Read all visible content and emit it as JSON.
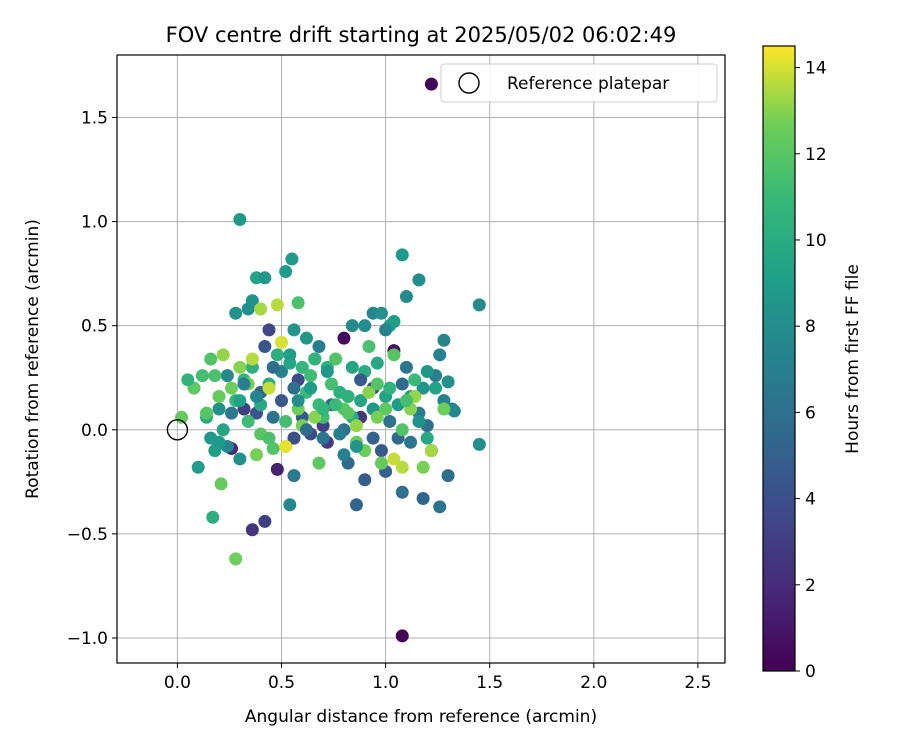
{
  "chart_data": {
    "type": "scatter",
    "title": "FOV centre drift starting at 2025/05/02 06:02:49",
    "xlabel": "Angular distance from reference (arcmin)",
    "ylabel": "Rotation from reference (arcmin)",
    "xlim": [
      -0.29,
      2.63
    ],
    "ylim": [
      -1.12,
      1.8
    ],
    "xticks": [
      0.0,
      0.5,
      1.0,
      1.5,
      2.0,
      2.5
    ],
    "yticks": [
      -1.0,
      -0.5,
      0.0,
      0.5,
      1.0,
      1.5
    ],
    "xtick_labels": [
      "0.0",
      "0.5",
      "1.0",
      "1.5",
      "2.0",
      "2.5"
    ],
    "ytick_labels": [
      "−1.0",
      "−0.5",
      "0.0",
      "0.5",
      "1.0",
      "1.5"
    ],
    "grid": true,
    "legend": {
      "placement": "top-right",
      "entries": [
        "Reference platepar"
      ]
    },
    "reference_point": {
      "x": 0.0,
      "y": 0.0
    },
    "colorbar": {
      "label": "Hours from first FF file",
      "colormap": "viridis",
      "range": [
        0,
        14.5
      ],
      "ticks": [
        0,
        2,
        4,
        6,
        8,
        10,
        12,
        14
      ],
      "tick_labels": [
        "0",
        "2",
        "4",
        "6",
        "8",
        "10",
        "12",
        "14"
      ]
    },
    "points": [
      [
        1.22,
        1.66,
        0.3
      ],
      [
        0.8,
        0.44,
        0.4
      ],
      [
        1.04,
        0.38,
        0.5
      ],
      [
        1.08,
        -0.99,
        0.2
      ],
      [
        0.36,
        -0.48,
        2.5
      ],
      [
        0.42,
        -0.44,
        3.0
      ],
      [
        0.48,
        -0.19,
        1.5
      ],
      [
        0.26,
        -0.09,
        2.0
      ],
      [
        0.44,
        0.48,
        3.5
      ],
      [
        0.56,
        -0.04,
        4.0
      ],
      [
        0.4,
        0.18,
        5.0
      ],
      [
        0.6,
        0.06,
        4.5
      ],
      [
        0.7,
        0.02,
        3.2
      ],
      [
        0.9,
        -0.24,
        4.8
      ],
      [
        0.86,
        -0.36,
        5.2
      ],
      [
        0.82,
        -0.16,
        5.5
      ],
      [
        1.0,
        -0.2,
        5.0
      ],
      [
        0.72,
        -0.06,
        2.8
      ],
      [
        0.64,
        -0.02,
        3.8
      ],
      [
        0.32,
        0.1,
        3.0
      ],
      [
        0.38,
        0.08,
        4.2
      ],
      [
        0.5,
        0.14,
        4.5
      ],
      [
        0.58,
        0.24,
        3.6
      ],
      [
        0.66,
        0.34,
        4.0
      ],
      [
        0.74,
        0.12,
        5.8
      ],
      [
        0.8,
        0.0,
        6.2
      ],
      [
        0.88,
        0.06,
        2.6
      ],
      [
        0.94,
        0.2,
        3.4
      ],
      [
        0.98,
        -0.1,
        4.6
      ],
      [
        1.06,
        -0.04,
        5.6
      ],
      [
        1.1,
        0.3,
        6.4
      ],
      [
        1.16,
        0.08,
        6.8
      ],
      [
        1.08,
        -0.3,
        6.0
      ],
      [
        1.18,
        -0.33,
        5.4
      ],
      [
        1.26,
        -0.37,
        6.2
      ],
      [
        1.22,
        -0.1,
        6.6
      ],
      [
        1.3,
        -0.22,
        5.8
      ],
      [
        1.24,
        0.26,
        7.0
      ],
      [
        1.28,
        0.14,
        7.2
      ],
      [
        1.32,
        0.1,
        7.4
      ],
      [
        1.2,
        0.02,
        6.0
      ],
      [
        1.12,
        -0.06,
        6.4
      ],
      [
        0.56,
        -0.22,
        6.6
      ],
      [
        0.54,
        -0.36,
        7.6
      ],
      [
        0.3,
        -0.14,
        8.2
      ],
      [
        0.16,
        -0.04,
        8.6
      ],
      [
        0.2,
        0.1,
        8.0
      ],
      [
        0.24,
        0.26,
        7.8
      ],
      [
        0.28,
        0.56,
        8.4
      ],
      [
        0.3,
        1.01,
        8.8
      ],
      [
        0.34,
        0.58,
        8.0
      ],
      [
        0.36,
        0.62,
        8.2
      ],
      [
        0.38,
        0.73,
        9.4
      ],
      [
        0.42,
        0.73,
        8.6
      ],
      [
        0.52,
        0.76,
        9.0
      ],
      [
        0.55,
        0.82,
        8.8
      ],
      [
        0.5,
        0.28,
        7.2
      ],
      [
        0.56,
        0.48,
        8.4
      ],
      [
        0.62,
        0.44,
        8.6
      ],
      [
        0.68,
        0.4,
        7.0
      ],
      [
        0.84,
        0.5,
        7.8
      ],
      [
        0.9,
        0.5,
        8.0
      ],
      [
        0.94,
        0.56,
        7.6
      ],
      [
        0.98,
        0.56,
        8.2
      ],
      [
        1.02,
        0.5,
        9.2
      ],
      [
        1.04,
        0.52,
        9.0
      ],
      [
        1.0,
        0.48,
        7.4
      ],
      [
        1.08,
        0.84,
        8.8
      ],
      [
        1.1,
        0.64,
        7.8
      ],
      [
        1.16,
        0.72,
        8.0
      ],
      [
        1.2,
        0.28,
        8.6
      ],
      [
        1.26,
        0.36,
        7.2
      ],
      [
        1.28,
        0.43,
        7.4
      ],
      [
        1.45,
        0.6,
        7.8
      ],
      [
        1.45,
        -0.07,
        8.0
      ],
      [
        1.33,
        0.09,
        7.6
      ],
      [
        1.3,
        0.23,
        8.2
      ],
      [
        1.18,
        0.2,
        8.4
      ],
      [
        1.12,
        0.16,
        9.0
      ],
      [
        1.06,
        0.12,
        8.8
      ],
      [
        1.0,
        0.16,
        9.4
      ],
      [
        0.94,
        0.1,
        8.6
      ],
      [
        0.88,
        0.14,
        9.6
      ],
      [
        0.84,
        0.06,
        10.0
      ],
      [
        0.78,
        0.18,
        10.2
      ],
      [
        0.72,
        0.3,
        10.4
      ],
      [
        0.66,
        0.34,
        10.6
      ],
      [
        0.6,
        0.3,
        10.8
      ],
      [
        0.54,
        0.32,
        9.8
      ],
      [
        0.48,
        0.36,
        10.2
      ],
      [
        0.44,
        0.22,
        10.0
      ],
      [
        0.4,
        0.12,
        9.8
      ],
      [
        0.36,
        0.3,
        10.4
      ],
      [
        0.32,
        0.24,
        10.6
      ],
      [
        0.28,
        0.14,
        10.8
      ],
      [
        0.22,
        0.0,
        9.6
      ],
      [
        0.18,
        -0.1,
        9.2
      ],
      [
        0.14,
        0.06,
        10.0
      ],
      [
        0.1,
        -0.18,
        9.0
      ],
      [
        0.17,
        -0.42,
        10.2
      ],
      [
        0.21,
        -0.26,
        12.4
      ],
      [
        0.28,
        -0.62,
        12.6
      ],
      [
        0.46,
        -0.09,
        11.8
      ],
      [
        0.52,
        0.04,
        11.4
      ],
      [
        0.58,
        0.61,
        11.6
      ],
      [
        0.62,
        0.18,
        11.0
      ],
      [
        0.68,
        -0.16,
        12.2
      ],
      [
        0.7,
        0.06,
        11.2
      ],
      [
        0.76,
        0.34,
        11.8
      ],
      [
        0.82,
        0.08,
        12.0
      ],
      [
        0.86,
        -0.06,
        12.4
      ],
      [
        0.9,
        -0.1,
        12.6
      ],
      [
        0.92,
        0.4,
        11.6
      ],
      [
        0.96,
        0.06,
        12.8
      ],
      [
        1.0,
        0.1,
        12.2
      ],
      [
        1.04,
        0.36,
        12.0
      ],
      [
        1.08,
        0.0,
        11.8
      ],
      [
        1.12,
        0.1,
        13.0
      ],
      [
        1.14,
        0.16,
        13.2
      ],
      [
        1.18,
        -0.18,
        12.8
      ],
      [
        1.22,
        -0.1,
        13.4
      ],
      [
        1.28,
        0.1,
        12.6
      ],
      [
        1.08,
        -0.18,
        13.6
      ],
      [
        1.04,
        -0.14,
        13.8
      ],
      [
        0.98,
        -0.16,
        12.4
      ],
      [
        0.92,
        0.18,
        13.0
      ],
      [
        0.86,
        0.02,
        13.2
      ],
      [
        0.8,
        0.1,
        12.0
      ],
      [
        0.74,
        0.22,
        11.4
      ],
      [
        0.68,
        0.12,
        11.0
      ],
      [
        0.64,
        0.26,
        11.2
      ],
      [
        0.58,
        0.1,
        12.6
      ],
      [
        0.52,
        -0.08,
        14.2
      ],
      [
        0.5,
        0.42,
        14.0
      ],
      [
        0.48,
        0.6,
        13.6
      ],
      [
        0.44,
        0.2,
        13.8
      ],
      [
        0.4,
        0.58,
        13.4
      ],
      [
        0.36,
        0.34,
        13.6
      ],
      [
        0.34,
        0.22,
        12.8
      ],
      [
        0.3,
        0.3,
        13.0
      ],
      [
        0.26,
        0.2,
        12.6
      ],
      [
        0.22,
        0.36,
        13.2
      ],
      [
        0.2,
        0.16,
        12.4
      ],
      [
        0.18,
        0.26,
        11.6
      ],
      [
        0.16,
        0.34,
        11.8
      ],
      [
        0.14,
        0.08,
        12.0
      ],
      [
        0.12,
        0.26,
        11.4
      ],
      [
        0.08,
        0.2,
        12.2
      ],
      [
        0.05,
        0.24,
        10.6
      ],
      [
        0.02,
        0.06,
        12.4
      ],
      [
        0.4,
        -0.02,
        12.0
      ],
      [
        0.44,
        -0.04,
        11.6
      ],
      [
        0.38,
        -0.12,
        12.8
      ],
      [
        0.34,
        0.04,
        11.2
      ],
      [
        0.6,
        0.02,
        12.8
      ],
      [
        0.66,
        0.06,
        13.0
      ],
      [
        0.7,
        0.1,
        10.8
      ],
      [
        0.76,
        0.12,
        11.0
      ],
      [
        0.82,
        0.16,
        10.4
      ],
      [
        0.96,
        0.22,
        11.8
      ],
      [
        1.02,
        0.2,
        10.6
      ],
      [
        1.1,
        0.14,
        11.4
      ],
      [
        1.14,
        0.24,
        11.0
      ],
      [
        0.84,
        0.3,
        9.6
      ],
      [
        0.9,
        0.28,
        10.0
      ],
      [
        0.96,
        0.32,
        9.8
      ],
      [
        0.86,
        -0.08,
        8.4
      ],
      [
        0.78,
        -0.02,
        6.8
      ],
      [
        0.7,
        -0.04,
        6.4
      ],
      [
        0.62,
        0.0,
        5.6
      ],
      [
        0.94,
        -0.04,
        5.2
      ],
      [
        1.02,
        0.04,
        6.2
      ],
      [
        1.08,
        0.22,
        5.6
      ],
      [
        0.88,
        0.24,
        4.6
      ],
      [
        0.56,
        0.2,
        6.0
      ],
      [
        0.46,
        0.3,
        5.8
      ],
      [
        0.42,
        0.4,
        4.4
      ],
      [
        0.32,
        0.22,
        7.0
      ],
      [
        0.26,
        0.08,
        6.6
      ],
      [
        0.24,
        -0.08,
        7.4
      ],
      [
        0.2,
        -0.06,
        8.8
      ],
      [
        0.38,
        0.16,
        7.6
      ],
      [
        0.46,
        0.06,
        6.2
      ],
      [
        0.58,
        0.14,
        8.0
      ],
      [
        0.64,
        0.2,
        9.0
      ],
      [
        0.72,
        0.28,
        8.6
      ],
      [
        0.8,
        -0.12,
        7.2
      ],
      [
        1.16,
        0.04,
        8.2
      ],
      [
        1.24,
        0.2,
        9.4
      ],
      [
        1.2,
        -0.04,
        9.8
      ],
      [
        0.54,
        0.36,
        9.2
      ],
      [
        0.3,
        0.14,
        9.4
      ]
    ]
  }
}
